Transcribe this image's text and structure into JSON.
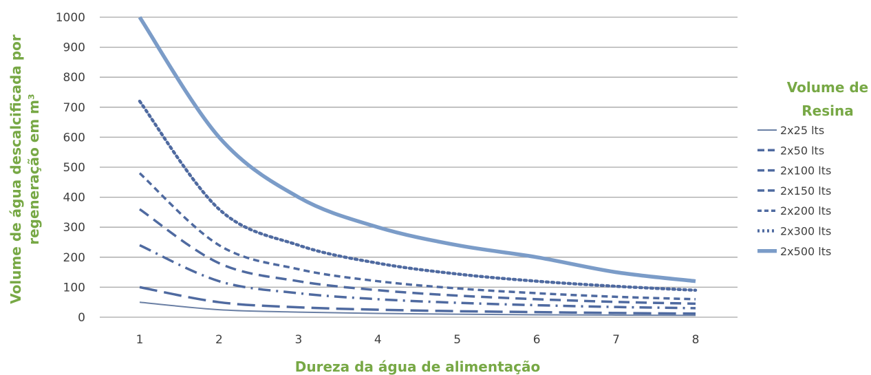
{
  "chart_data": {
    "type": "line",
    "xlabel": "Dureza da água de alimentação",
    "ylabel_line1": "Volume de água descalcificada por",
    "ylabel_line2": "regeneração em m³",
    "x": [
      1,
      2,
      3,
      4,
      5,
      6,
      7,
      8
    ],
    "ylim": [
      0,
      1000
    ],
    "yticks": [
      0,
      100,
      200,
      300,
      400,
      500,
      600,
      700,
      800,
      900,
      1000
    ],
    "grid": true,
    "legend_title_line1": "Volume de",
    "legend_title_line2": "Resina",
    "legend_position": "right",
    "series": [
      {
        "name": "2x25 lts",
        "values": [
          50,
          25,
          17,
          12.5,
          10,
          8,
          7,
          6
        ],
        "color": "#6a7fa4",
        "style": "solid"
      },
      {
        "name": "2x50 lts",
        "values": [
          100,
          50,
          33,
          25,
          20,
          17,
          14,
          12
        ],
        "color": "#4f6aa0",
        "style": "longdash"
      },
      {
        "name": "2x100 lts",
        "values": [
          240,
          120,
          80,
          60,
          48,
          40,
          34,
          30
        ],
        "color": "#4f6aa0",
        "style": "dashdot"
      },
      {
        "name": "2x150 lts",
        "values": [
          360,
          180,
          120,
          90,
          72,
          60,
          51,
          45
        ],
        "color": "#4f6aa0",
        "style": "dash"
      },
      {
        "name": "2x200 lts",
        "values": [
          480,
          240,
          160,
          120,
          96,
          80,
          68,
          60
        ],
        "color": "#4f6aa0",
        "style": "shortdash"
      },
      {
        "name": "2x300 lts",
        "values": [
          720,
          360,
          240,
          180,
          144,
          120,
          103,
          90
        ],
        "color": "#4f6aa0",
        "style": "dot"
      },
      {
        "name": "2x500 lts",
        "values": [
          1000,
          600,
          400,
          300,
          240,
          200,
          150,
          120
        ],
        "color": "#7b9cc8",
        "style": "thick"
      }
    ]
  }
}
